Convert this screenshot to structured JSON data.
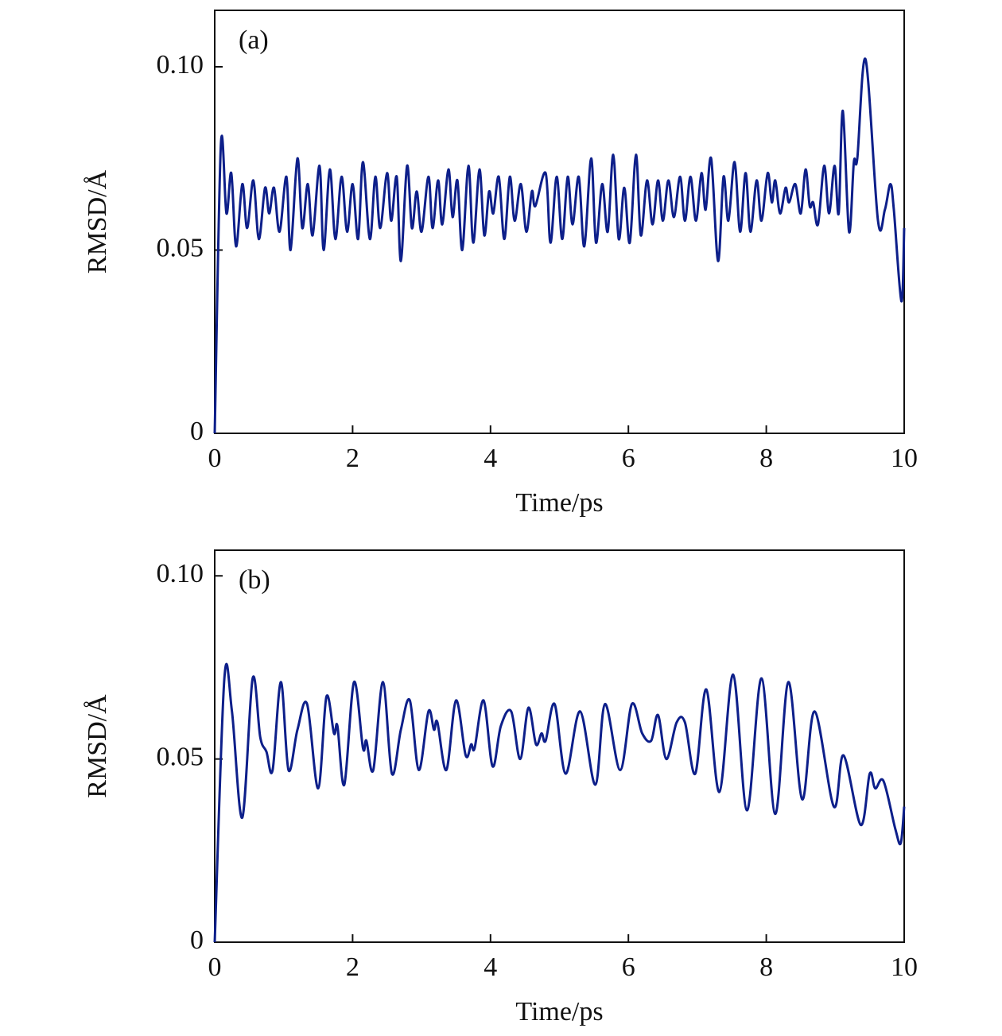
{
  "chart_data": [
    {
      "type": "line",
      "annotation": "(a)",
      "xlabel": "Time/ps",
      "ylabel": "RMSD/Å",
      "color": "#0d1f8a",
      "xlim": [
        0,
        10
      ],
      "xticks": [
        0,
        2,
        4,
        6,
        8,
        10
      ],
      "ylim": [
        0,
        0.1154
      ],
      "yticks": [
        0,
        0.05,
        {
          "value": 0.1,
          "label": "0.10"
        }
      ],
      "x": [
        0,
        0.09,
        0.17,
        0.24,
        0.31,
        0.4,
        0.47,
        0.56,
        0.64,
        0.73,
        0.79,
        0.86,
        0.94,
        1.04,
        1.1,
        1.2,
        1.27,
        1.35,
        1.42,
        1.52,
        1.58,
        1.67,
        1.75,
        1.84,
        1.92,
        2.0,
        2.08,
        2.15,
        2.25,
        2.33,
        2.4,
        2.5,
        2.56,
        2.64,
        2.7,
        2.79,
        2.86,
        2.93,
        3.0,
        3.1,
        3.16,
        3.24,
        3.3,
        3.39,
        3.45,
        3.52,
        3.59,
        3.68,
        3.75,
        3.84,
        3.91,
        3.98,
        4.04,
        4.12,
        4.2,
        4.28,
        4.35,
        4.44,
        4.52,
        4.6,
        4.65,
        4.8,
        4.87,
        4.96,
        5.04,
        5.12,
        5.19,
        5.28,
        5.36,
        5.46,
        5.53,
        5.62,
        5.7,
        5.78,
        5.86,
        5.94,
        6.02,
        6.11,
        6.18,
        6.27,
        6.35,
        6.43,
        6.5,
        6.58,
        6.66,
        6.75,
        6.82,
        6.9,
        6.98,
        7.06,
        7.12,
        7.2,
        7.3,
        7.38,
        7.45,
        7.54,
        7.62,
        7.7,
        7.77,
        7.86,
        7.93,
        8.02,
        8.08,
        8.13,
        8.2,
        8.28,
        8.33,
        8.42,
        8.5,
        8.57,
        8.63,
        8.68,
        8.75,
        8.84,
        8.91,
        8.99,
        9.05,
        9.11,
        9.2,
        9.27,
        9.32,
        9.44,
        9.62,
        9.72,
        9.8,
        9.85,
        9.96,
        10.0
      ],
      "values": [
        0,
        0.079,
        0.06,
        0.071,
        0.051,
        0.068,
        0.056,
        0.069,
        0.053,
        0.067,
        0.06,
        0.067,
        0.055,
        0.07,
        0.05,
        0.075,
        0.056,
        0.068,
        0.054,
        0.073,
        0.05,
        0.072,
        0.053,
        0.07,
        0.055,
        0.068,
        0.053,
        0.074,
        0.053,
        0.07,
        0.056,
        0.071,
        0.058,
        0.07,
        0.047,
        0.073,
        0.056,
        0.066,
        0.055,
        0.07,
        0.056,
        0.069,
        0.057,
        0.072,
        0.059,
        0.069,
        0.05,
        0.073,
        0.052,
        0.072,
        0.054,
        0.066,
        0.06,
        0.07,
        0.053,
        0.07,
        0.058,
        0.068,
        0.055,
        0.066,
        0.062,
        0.071,
        0.052,
        0.07,
        0.053,
        0.07,
        0.057,
        0.07,
        0.051,
        0.075,
        0.052,
        0.068,
        0.055,
        0.076,
        0.053,
        0.067,
        0.052,
        0.076,
        0.054,
        0.069,
        0.057,
        0.069,
        0.058,
        0.069,
        0.059,
        0.07,
        0.058,
        0.07,
        0.058,
        0.071,
        0.061,
        0.075,
        0.047,
        0.07,
        0.058,
        0.074,
        0.055,
        0.071,
        0.055,
        0.069,
        0.058,
        0.071,
        0.063,
        0.069,
        0.06,
        0.067,
        0.063,
        0.068,
        0.06,
        0.072,
        0.062,
        0.063,
        0.057,
        0.073,
        0.06,
        0.073,
        0.06,
        0.088,
        0.055,
        0.074,
        0.075,
        0.102,
        0.058,
        0.061,
        0.068,
        0.061,
        0.036,
        0.056
      ]
    },
    {
      "type": "line",
      "annotation": "(b)",
      "xlabel": "Time/ps",
      "ylabel": "RMSD/Å",
      "color": "#0d1f8a",
      "xlim": [
        0,
        10
      ],
      "xticks": [
        0,
        2,
        4,
        6,
        8,
        10
      ],
      "ylim": [
        0,
        0.107
      ],
      "yticks": [
        0,
        0.05,
        {
          "value": 0.1,
          "label": "0.10"
        }
      ],
      "x": [
        0,
        0.14,
        0.25,
        0.4,
        0.55,
        0.66,
        0.75,
        0.84,
        0.96,
        1.07,
        1.2,
        1.34,
        1.5,
        1.62,
        1.73,
        1.78,
        1.88,
        2.02,
        2.15,
        2.2,
        2.3,
        2.44,
        2.57,
        2.7,
        2.83,
        2.96,
        3.1,
        3.18,
        3.23,
        3.36,
        3.5,
        3.64,
        3.72,
        3.77,
        3.9,
        4.03,
        4.15,
        4.3,
        4.43,
        4.55,
        4.66,
        4.74,
        4.8,
        4.93,
        5.09,
        5.3,
        5.52,
        5.66,
        5.88,
        6.05,
        6.2,
        6.33,
        6.43,
        6.55,
        6.7,
        6.82,
        6.97,
        7.13,
        7.32,
        7.52,
        7.72,
        7.93,
        8.13,
        8.32,
        8.52,
        8.7,
        8.98,
        9.12,
        9.37,
        9.5,
        9.58,
        9.7,
        9.87,
        9.95,
        10.0
      ],
      "values": [
        0,
        0.072,
        0.063,
        0.034,
        0.072,
        0.056,
        0.052,
        0.047,
        0.071,
        0.047,
        0.058,
        0.065,
        0.042,
        0.067,
        0.057,
        0.059,
        0.043,
        0.071,
        0.053,
        0.055,
        0.047,
        0.071,
        0.046,
        0.058,
        0.066,
        0.047,
        0.063,
        0.058,
        0.06,
        0.047,
        0.066,
        0.051,
        0.054,
        0.053,
        0.066,
        0.048,
        0.059,
        0.063,
        0.05,
        0.064,
        0.054,
        0.057,
        0.055,
        0.065,
        0.046,
        0.063,
        0.043,
        0.065,
        0.047,
        0.065,
        0.057,
        0.055,
        0.062,
        0.05,
        0.06,
        0.06,
        0.046,
        0.069,
        0.041,
        0.073,
        0.036,
        0.072,
        0.035,
        0.071,
        0.039,
        0.063,
        0.037,
        0.051,
        0.032,
        0.046,
        0.042,
        0.044,
        0.031,
        0.027,
        0.037
      ]
    }
  ]
}
